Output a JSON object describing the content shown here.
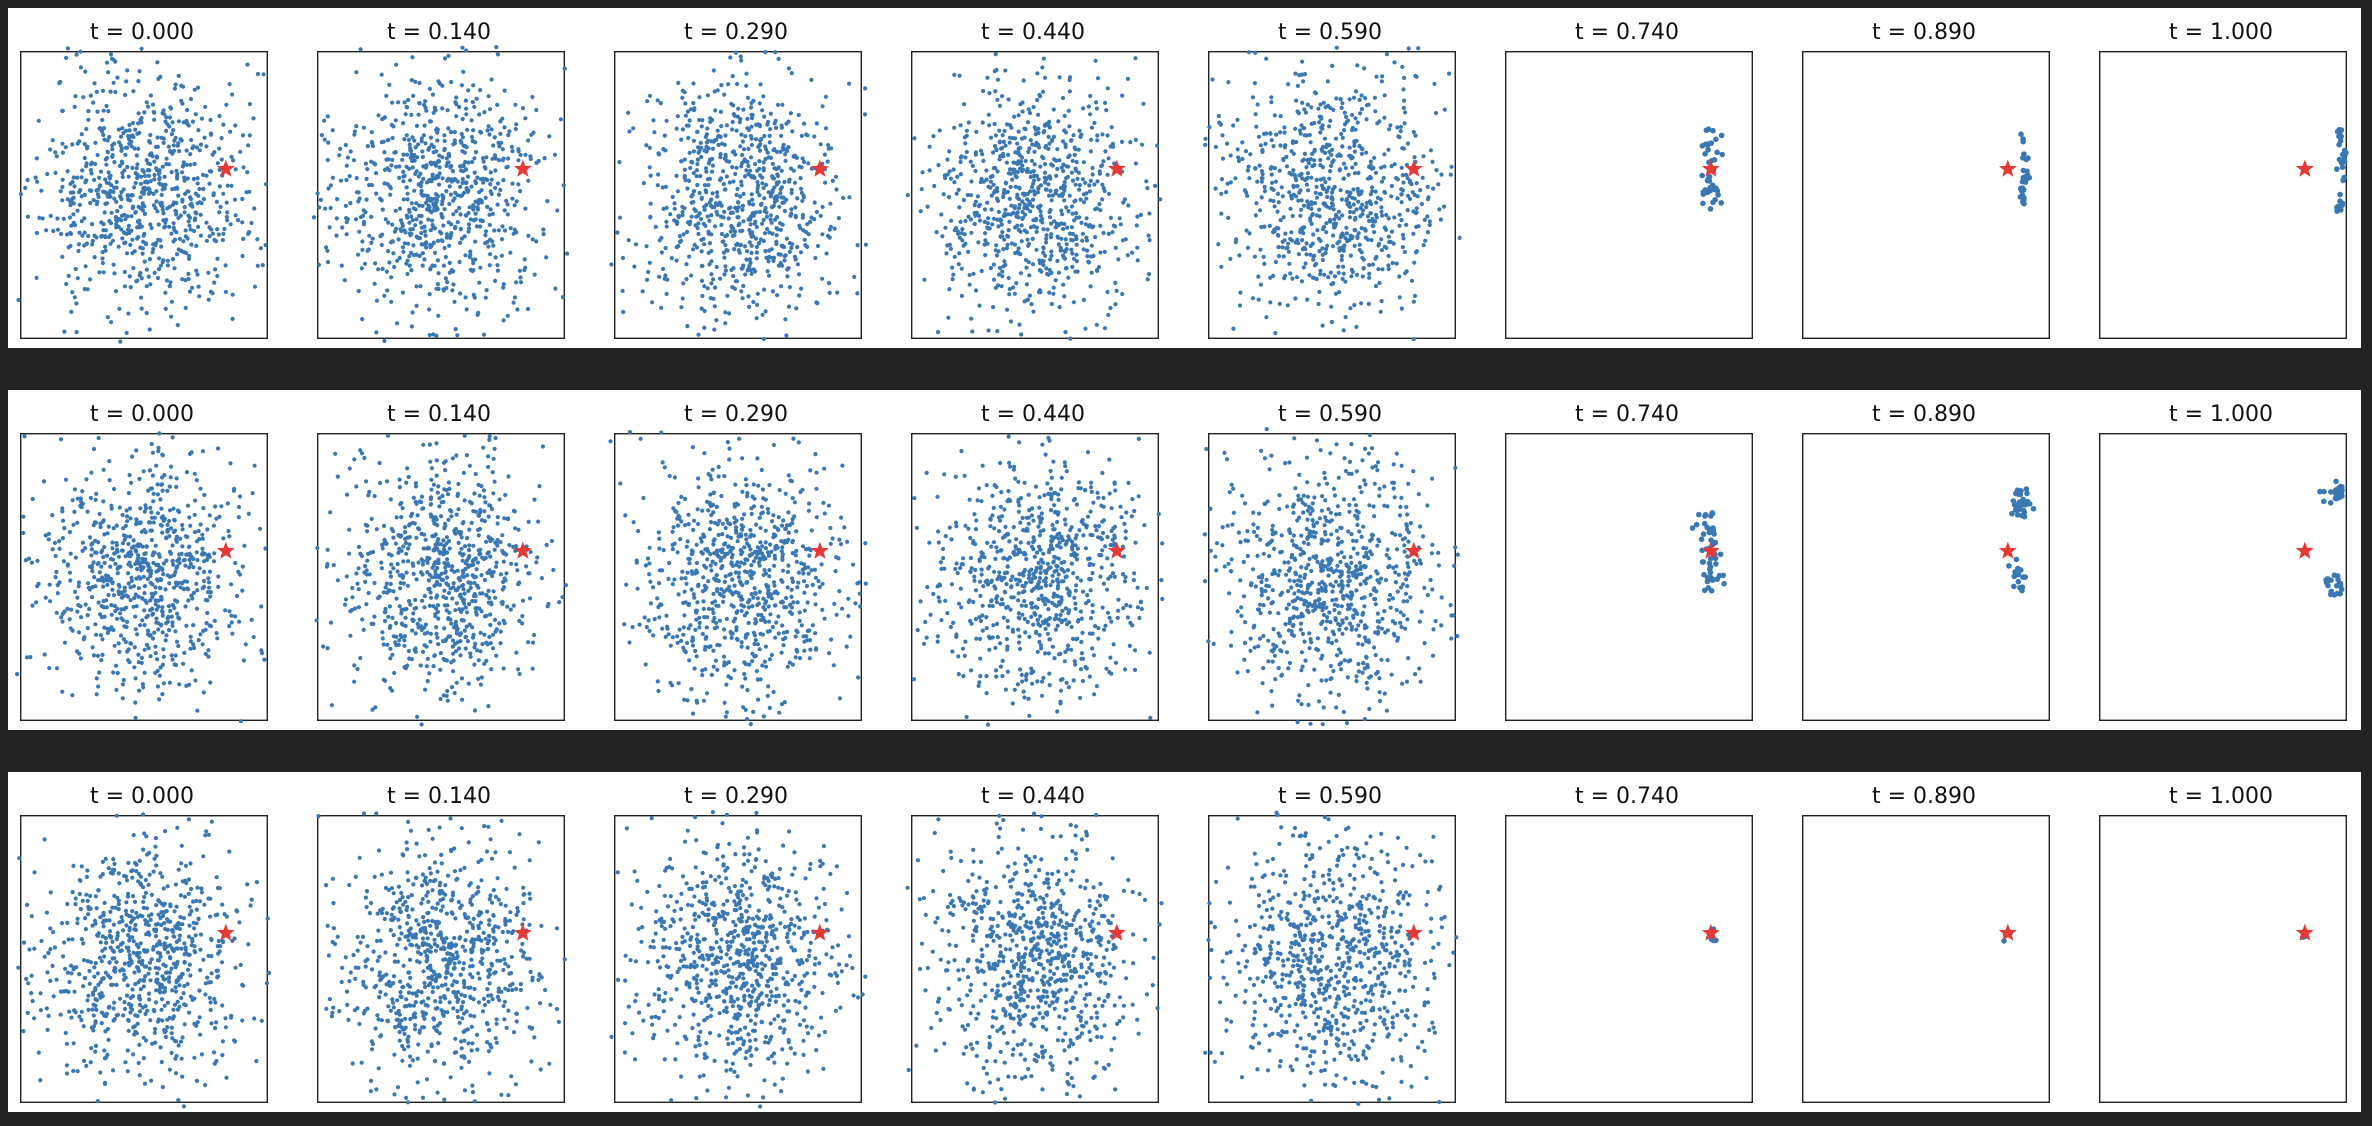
{
  "page": {
    "background": "#222222",
    "panel_background": "#ffffff"
  },
  "colors": {
    "points": "#3a78b4",
    "target": "#e53935",
    "frame": "#222222"
  },
  "chart_data": [
    {
      "type": "scatter",
      "row": 1,
      "frames": [
        {
          "title": "t = 0.000",
          "mode": "cloud",
          "sx": 1.0,
          "sy": 1.0,
          "seed": 11,
          "n": 800
        },
        {
          "title": "t = 0.140",
          "mode": "cloud",
          "sx": 0.95,
          "sy": 0.98,
          "seed": 12,
          "n": 800
        },
        {
          "title": "t = 0.290",
          "mode": "cloud",
          "sx": 0.95,
          "sy": 1.0,
          "seed": 13,
          "n": 800
        },
        {
          "title": "t = 0.440",
          "mode": "cloud",
          "sx": 1.0,
          "sy": 1.0,
          "seed": 14,
          "n": 800
        },
        {
          "title": "t = 0.590",
          "mode": "cloud",
          "sx": 1.05,
          "sy": 1.05,
          "seed": 15,
          "n": 800
        },
        {
          "title": "t = 0.740",
          "mode": "cluster",
          "shape": "vertical",
          "seed": 16,
          "n": 40
        },
        {
          "title": "t = 0.890",
          "mode": "cluster",
          "shape": "arc",
          "seed": 17,
          "n": 30
        },
        {
          "title": "t = 1.000",
          "mode": "cluster",
          "shape": "edge-arc",
          "seed": 18,
          "n": 30
        }
      ],
      "target": {
        "x": 0.83,
        "y": 0.41
      },
      "grid": false,
      "axis_ticks": false
    },
    {
      "type": "scatter",
      "row": 2,
      "frames": [
        {
          "title": "t = 0.000",
          "mode": "cloud",
          "sx": 1.0,
          "sy": 1.0,
          "seed": 21,
          "n": 800
        },
        {
          "title": "t = 0.140",
          "mode": "cloud",
          "sx": 0.95,
          "sy": 0.98,
          "seed": 22,
          "n": 800
        },
        {
          "title": "t = 0.290",
          "mode": "cloud",
          "sx": 0.95,
          "sy": 1.0,
          "seed": 23,
          "n": 800
        },
        {
          "title": "t = 0.440",
          "mode": "cloud",
          "sx": 1.0,
          "sy": 1.0,
          "seed": 24,
          "n": 800
        },
        {
          "title": "t = 0.590",
          "mode": "cloud",
          "sx": 1.05,
          "sy": 1.05,
          "seed": 25,
          "n": 800
        },
        {
          "title": "t = 0.740",
          "mode": "cluster",
          "shape": "vertical",
          "seed": 26,
          "n": 50
        },
        {
          "title": "t = 0.890",
          "mode": "cluster",
          "shape": "split",
          "seed": 27,
          "n": 45
        },
        {
          "title": "t = 1.000",
          "mode": "cluster",
          "shape": "edge-split",
          "seed": 28,
          "n": 45
        }
      ],
      "target": {
        "x": 0.83,
        "y": 0.41
      },
      "grid": false,
      "axis_ticks": false
    },
    {
      "type": "scatter",
      "row": 3,
      "frames": [
        {
          "title": "t = 0.000",
          "mode": "cloud",
          "sx": 1.0,
          "sy": 1.0,
          "seed": 31,
          "n": 800
        },
        {
          "title": "t = 0.140",
          "mode": "cloud",
          "sx": 0.95,
          "sy": 0.98,
          "seed": 32,
          "n": 800
        },
        {
          "title": "t = 0.290",
          "mode": "cloud",
          "sx": 0.95,
          "sy": 1.0,
          "seed": 33,
          "n": 800
        },
        {
          "title": "t = 0.440",
          "mode": "cloud",
          "sx": 1.0,
          "sy": 1.0,
          "seed": 34,
          "n": 800
        },
        {
          "title": "t = 0.590",
          "mode": "cloud",
          "sx": 1.05,
          "sy": 1.05,
          "seed": 35,
          "n": 800
        },
        {
          "title": "t = 0.740",
          "mode": "cluster",
          "shape": "tiny",
          "seed": 36,
          "n": 8
        },
        {
          "title": "t = 0.890",
          "mode": "cluster",
          "shape": "tiny",
          "seed": 37,
          "n": 5
        },
        {
          "title": "t = 1.000",
          "mode": "cluster",
          "shape": "tiny",
          "seed": 38,
          "n": 4
        }
      ],
      "target": {
        "x": 0.83,
        "y": 0.41
      },
      "grid": false,
      "axis_ticks": false
    }
  ]
}
